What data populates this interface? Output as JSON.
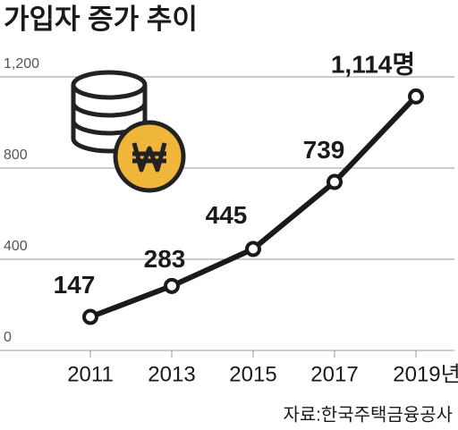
{
  "chart_data": {
    "type": "line",
    "title": "가입자 증가 추이",
    "categories": [
      "2011",
      "2013",
      "2015",
      "2017",
      "2019년"
    ],
    "values": [
      147,
      283,
      445,
      739,
      1114
    ],
    "value_labels": [
      "147",
      "283",
      "445",
      "739",
      "1,114명"
    ],
    "color": "#1a1a1a",
    "ylim": [
      0,
      1200
    ],
    "yticks": [
      0,
      400,
      800,
      {
        "value": 1200,
        "label": "1,200"
      }
    ],
    "grid": true,
    "source": "자료:한국주택금융공사"
  }
}
